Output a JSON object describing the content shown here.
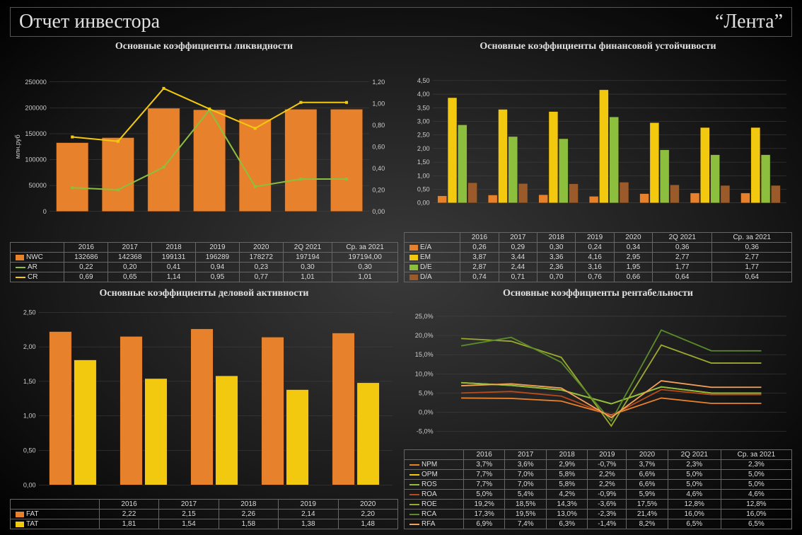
{
  "header": {
    "title": "Отчет инвестора",
    "company": "“Лента”"
  },
  "colors": {
    "orange": "#e8812c",
    "yellow": "#f2c90f",
    "green": "#8bbf3d",
    "olive": "#9aa82e",
    "dark_orange": "#c85a1a",
    "light_orange": "#f5a05a",
    "grid": "#444444",
    "text": "#dddddd",
    "border": "#666666"
  },
  "panels": {
    "liquidity": {
      "title": "Основные коэффициенты ликвидности",
      "ylabel_left": "млн.руб",
      "categories": [
        "2016",
        "2017",
        "2018",
        "2019",
        "2020",
        "2Q 2021",
        "Ср. за 2021"
      ],
      "left_axis": {
        "min": 0,
        "max": 250000,
        "step": 50000
      },
      "right_axis": {
        "min": 0,
        "max": 1.2,
        "step": 0.2,
        "decimals": 2,
        "sep": ","
      },
      "series": [
        {
          "key": "NWC",
          "type": "bar",
          "color": "#e8812c",
          "values": [
            132686,
            142368,
            199131,
            196289,
            178272,
            197194,
            197194.0
          ],
          "display": [
            "132686",
            "142368",
            "199131",
            "196289",
            "178272",
            "197194",
            "197194,00"
          ]
        },
        {
          "key": "AR",
          "type": "line",
          "color": "#8bbf3d",
          "values": [
            0.22,
            0.2,
            0.41,
            0.94,
            0.23,
            0.3,
            0.3
          ],
          "display": [
            "0,22",
            "0,20",
            "0,41",
            "0,94",
            "0,23",
            "0,30",
            "0,30"
          ],
          "axis": "right"
        },
        {
          "key": "CR",
          "type": "line",
          "color": "#f2c90f",
          "values": [
            0.69,
            0.65,
            1.14,
            0.95,
            0.77,
            1.01,
            1.01
          ],
          "display": [
            "0,69",
            "0,65",
            "1,14",
            "0,95",
            "0,77",
            "1,01",
            "1,01"
          ],
          "axis": "right"
        }
      ]
    },
    "stability": {
      "title": "Основные коэффициенты финансовой устойчивости",
      "categories": [
        "2016",
        "2017",
        "2018",
        "2019",
        "2020",
        "2Q 2021",
        "Ср. за 2021"
      ],
      "y_axis": {
        "min": 0,
        "max": 4.5,
        "step": 0.5,
        "decimals": 2,
        "sep": ","
      },
      "series": [
        {
          "key": "E/A",
          "type": "bar",
          "color": "#e8812c",
          "values": [
            0.26,
            0.29,
            0.3,
            0.24,
            0.34,
            0.36,
            0.36
          ],
          "display": [
            "0,26",
            "0,29",
            "0,30",
            "0,24",
            "0,34",
            "0,36",
            "0,36"
          ]
        },
        {
          "key": "EM",
          "type": "bar",
          "color": "#f2c90f",
          "values": [
            3.87,
            3.44,
            3.36,
            4.16,
            2.95,
            2.77,
            2.77
          ],
          "display": [
            "3,87",
            "3,44",
            "3,36",
            "4,16",
            "2,95",
            "2,77",
            "2,77"
          ]
        },
        {
          "key": "D/E",
          "type": "bar",
          "color": "#8bbf3d",
          "values": [
            2.87,
            2.44,
            2.36,
            3.16,
            1.95,
            1.77,
            1.77
          ],
          "display": [
            "2,87",
            "2,44",
            "2,36",
            "3,16",
            "1,95",
            "1,77",
            "1,77"
          ]
        },
        {
          "key": "D/A",
          "type": "bar",
          "color": "#9a5a2a",
          "values": [
            0.74,
            0.71,
            0.7,
            0.76,
            0.66,
            0.64,
            0.64
          ],
          "display": [
            "0,74",
            "0,71",
            "0,70",
            "0,76",
            "0,66",
            "0,64",
            "0,64"
          ]
        }
      ]
    },
    "activity": {
      "title": "Основные коэффициенты деловой активности",
      "categories": [
        "2016",
        "2017",
        "2018",
        "2019",
        "2020"
      ],
      "y_axis": {
        "min": 0,
        "max": 2.5,
        "step": 0.5,
        "decimals": 2,
        "sep": ","
      },
      "series": [
        {
          "key": "FAT",
          "type": "bar",
          "color": "#e8812c",
          "values": [
            2.22,
            2.15,
            2.26,
            2.14,
            2.2
          ],
          "display": [
            "2,22",
            "2,15",
            "2,26",
            "2,14",
            "2,20"
          ]
        },
        {
          "key": "TAT",
          "type": "bar",
          "color": "#f2c90f",
          "values": [
            1.81,
            1.54,
            1.58,
            1.38,
            1.48
          ],
          "display": [
            "1,81",
            "1,54",
            "1,58",
            "1,38",
            "1,48"
          ]
        }
      ]
    },
    "profitability": {
      "title": "Основные коэффициенты рентабельности",
      "categories": [
        "2016",
        "2017",
        "2018",
        "2019",
        "2020",
        "2Q 2021",
        "Ср. за 2021"
      ],
      "y_axis": {
        "min": -5,
        "max": 25,
        "step": 5,
        "suffix": ",0%"
      },
      "series": [
        {
          "key": "NPM",
          "type": "line",
          "color": "#e8812c",
          "values": [
            3.7,
            3.6,
            2.9,
            -0.7,
            3.7,
            2.3,
            2.3
          ],
          "display": [
            "3,7%",
            "3,6%",
            "2,9%",
            "-0,7%",
            "3,7%",
            "2,3%",
            "2,3%"
          ]
        },
        {
          "key": "OPM",
          "type": "line",
          "color": "#f2c90f",
          "values": [
            7.7,
            7.0,
            5.8,
            2.2,
            6.6,
            5.0,
            5.0
          ],
          "display": [
            "7,7%",
            "7,0%",
            "5,8%",
            "2,2%",
            "6,6%",
            "5,0%",
            "5,0%"
          ]
        },
        {
          "key": "ROS",
          "type": "line",
          "color": "#8bbf3d",
          "values": [
            7.7,
            7.0,
            5.8,
            2.2,
            6.6,
            5.0,
            5.0
          ],
          "display": [
            "7,7%",
            "7,0%",
            "5,8%",
            "2,2%",
            "6,6%",
            "5,0%",
            "5,0%"
          ]
        },
        {
          "key": "ROA",
          "type": "line",
          "color": "#b84a1a",
          "values": [
            5.0,
            5.4,
            4.2,
            -0.9,
            5.9,
            4.6,
            4.6
          ],
          "display": [
            "5,0%",
            "5,4%",
            "4,2%",
            "-0,9%",
            "5,9%",
            "4,6%",
            "4,6%"
          ]
        },
        {
          "key": "ROE",
          "type": "line",
          "color": "#9aa82e",
          "values": [
            19.2,
            18.5,
            14.3,
            -3.6,
            17.5,
            12.8,
            12.8
          ],
          "display": [
            "19,2%",
            "18,5%",
            "14,3%",
            "-3,6%",
            "17,5%",
            "12,8%",
            "12,8%"
          ]
        },
        {
          "key": "RCA",
          "type": "line",
          "color": "#5a8a2a",
          "values": [
            17.3,
            19.5,
            13.0,
            -2.3,
            21.4,
            16.0,
            16.0
          ],
          "display": [
            "17,3%",
            "19,5%",
            "13,0%",
            "-2,3%",
            "21,4%",
            "16,0%",
            "16,0%"
          ]
        },
        {
          "key": "RFA",
          "type": "line",
          "color": "#f5a05a",
          "values": [
            6.9,
            7.4,
            6.3,
            -1.4,
            8.2,
            6.5,
            6.5
          ],
          "display": [
            "6,9%",
            "7,4%",
            "6,3%",
            "-1,4%",
            "8,2%",
            "6,5%",
            "6,5%"
          ]
        }
      ]
    }
  }
}
